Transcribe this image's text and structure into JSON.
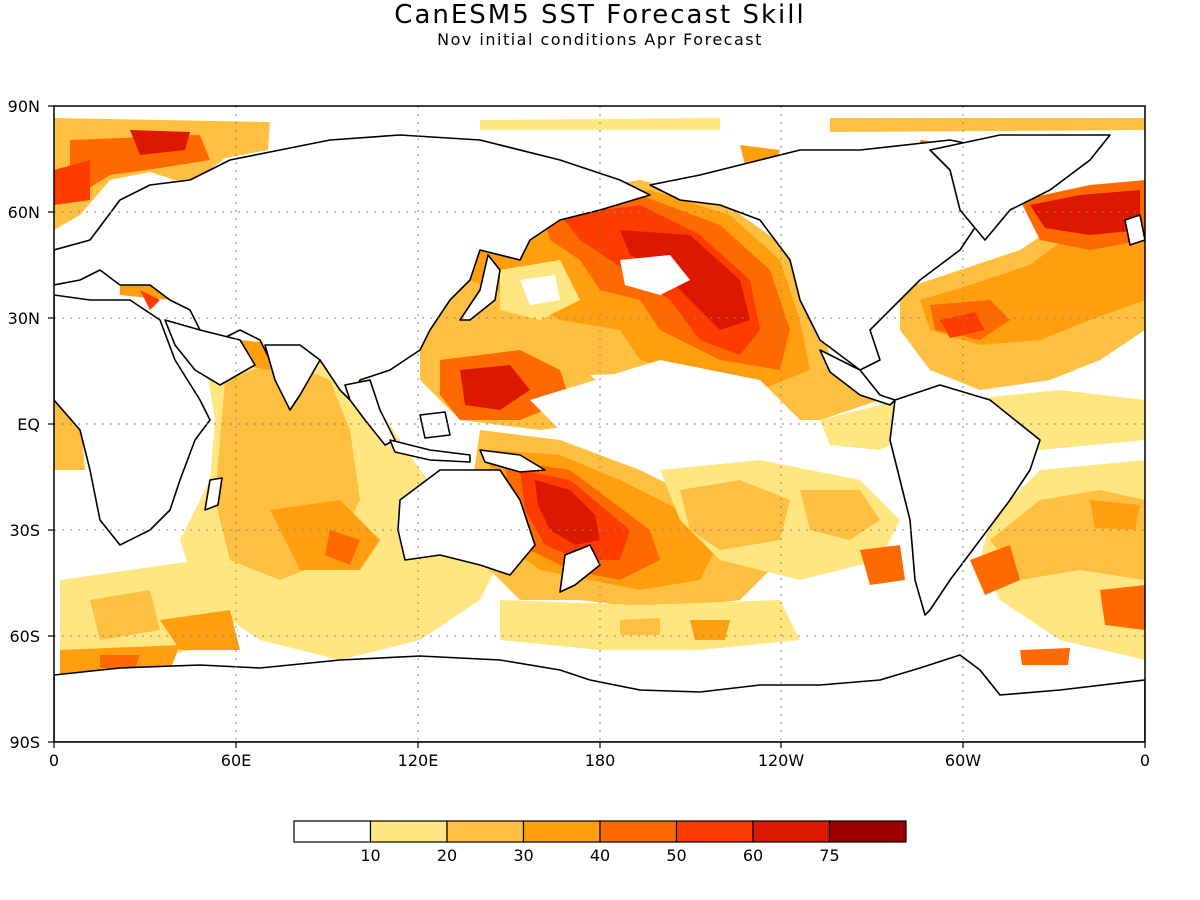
{
  "header": {
    "title": "CanESM5 SST Forecast Skill",
    "subtitle": "Nov initial conditions  Apr Forecast"
  },
  "axes": {
    "lat_labels": [
      "90N",
      "60N",
      "30N",
      "EQ",
      "30S",
      "60S",
      "90S"
    ],
    "lon_labels": [
      "0",
      "60E",
      "120E",
      "180",
      "120W",
      "60W",
      "0"
    ]
  },
  "colorbar": {
    "colors": [
      "#ffffff",
      "#ffe680",
      "#ffbf40",
      "#ff9f10",
      "#ff6a00",
      "#ff3c00",
      "#dd1800",
      "#a00000"
    ],
    "labels": [
      "10",
      "20",
      "30",
      "40",
      "50",
      "60",
      "75"
    ]
  },
  "map_style": {
    "land_color": "#ffffff",
    "coast_color": "#000000",
    "grid": "dotted"
  }
}
